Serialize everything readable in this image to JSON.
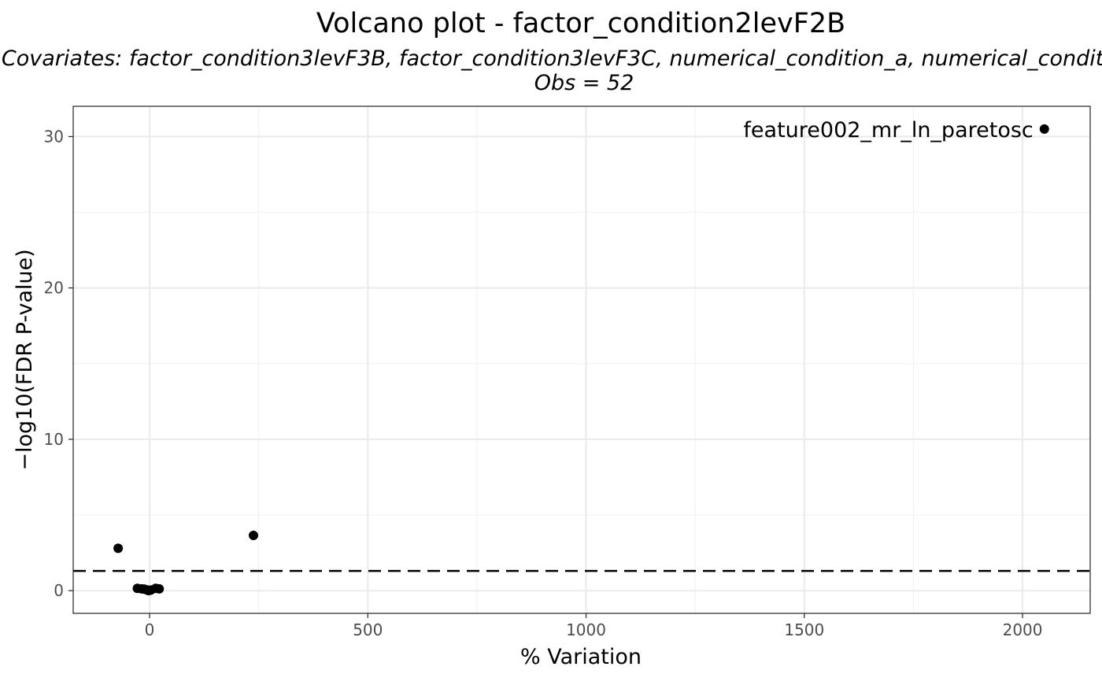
{
  "chart_data": {
    "type": "scatter",
    "title": "Volcano plot - factor_condition2levF2B",
    "subtitle_line1": "Covariates: factor_condition3levF3B, factor_condition3levF3C, numerical_condition_a, numerical_condition_b",
    "subtitle_line2": "Obs = 52",
    "xlabel": "% Variation",
    "ylabel": "−log10(FDR P-value)",
    "xlim": [
      -175,
      2155
    ],
    "ylim": [
      -1.5,
      32.0
    ],
    "xticks": [
      0,
      500,
      1000,
      1500,
      2000
    ],
    "yticks": [
      0,
      10,
      20,
      30
    ],
    "grid": true,
    "threshold_y": 1.3,
    "points": [
      {
        "x": -72,
        "y": 2.8
      },
      {
        "x": -28,
        "y": 0.15
      },
      {
        "x": -18,
        "y": 0.12
      },
      {
        "x": -12,
        "y": 0.1
      },
      {
        "x": -6,
        "y": 0.05
      },
      {
        "x": -2,
        "y": 0.0
      },
      {
        "x": 3,
        "y": 0.04
      },
      {
        "x": 14,
        "y": 0.15
      },
      {
        "x": 22,
        "y": 0.12
      },
      {
        "x": 238,
        "y": 3.65
      },
      {
        "x": 2050,
        "y": 30.5,
        "label": "feature002_mr_ln_paretosc"
      }
    ]
  }
}
